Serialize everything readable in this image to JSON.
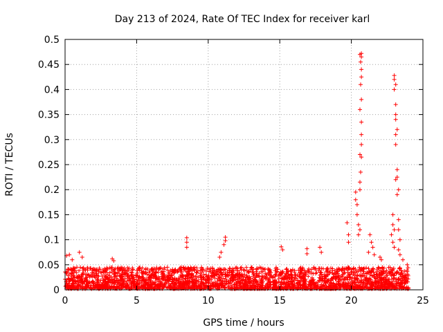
{
  "chart_data": {
    "type": "scatter",
    "title": "Day 213 of 2024, Rate Of TEC Index for receiver karl",
    "xlabel": "GPS time / hours",
    "ylabel": "ROTI / TECUs",
    "xlim": [
      0,
      25
    ],
    "ylim": [
      0,
      0.5
    ],
    "grid": true,
    "marker": "plus",
    "marker_color": "#ff0000",
    "x_ticks": [
      "0",
      "5",
      "10",
      "15",
      "20",
      "25"
    ],
    "y_ticks": [
      "0",
      "0.05",
      "0.1",
      "0.15",
      "0.2",
      "0.25",
      "0.3",
      "0.35",
      "0.4",
      "0.45",
      "0.5"
    ],
    "series": [
      {
        "name": "ROTI",
        "description_note": "dense band of points between 0 and ~0.05 TECU/min across 0-24 h, with spikes listed below",
        "baseline_band": {
          "x_range": [
            0,
            24
          ],
          "y_min": 0.002,
          "y_max": 0.045
        },
        "points": [
          [
            0.1,
            0.068
          ],
          [
            0.3,
            0.07
          ],
          [
            0.5,
            0.06
          ],
          [
            1.0,
            0.075
          ],
          [
            1.2,
            0.065
          ],
          [
            3.3,
            0.062
          ],
          [
            3.4,
            0.058
          ],
          [
            8.5,
            0.104
          ],
          [
            8.5,
            0.095
          ],
          [
            8.5,
            0.085
          ],
          [
            11.2,
            0.105
          ],
          [
            11.2,
            0.098
          ],
          [
            11.1,
            0.09
          ],
          [
            10.9,
            0.075
          ],
          [
            10.8,
            0.065
          ],
          [
            15.1,
            0.086
          ],
          [
            15.2,
            0.08
          ],
          [
            16.9,
            0.082
          ],
          [
            16.9,
            0.072
          ],
          [
            17.8,
            0.085
          ],
          [
            17.9,
            0.075
          ],
          [
            19.7,
            0.134
          ],
          [
            19.8,
            0.11
          ],
          [
            19.8,
            0.095
          ],
          [
            20.3,
            0.195
          ],
          [
            20.3,
            0.18
          ],
          [
            20.4,
            0.17
          ],
          [
            20.4,
            0.15
          ],
          [
            20.5,
            0.13
          ],
          [
            20.5,
            0.11
          ],
          [
            20.6,
            0.12
          ],
          [
            20.6,
            0.2
          ],
          [
            20.6,
            0.215
          ],
          [
            20.65,
            0.235
          ],
          [
            20.7,
            0.265
          ],
          [
            20.6,
            0.27
          ],
          [
            20.7,
            0.29
          ],
          [
            20.7,
            0.31
          ],
          [
            20.7,
            0.335
          ],
          [
            20.6,
            0.36
          ],
          [
            20.7,
            0.38
          ],
          [
            20.65,
            0.41
          ],
          [
            20.7,
            0.425
          ],
          [
            20.7,
            0.44
          ],
          [
            20.65,
            0.455
          ],
          [
            20.6,
            0.47
          ],
          [
            20.7,
            0.472
          ],
          [
            20.7,
            0.465
          ],
          [
            21.3,
            0.11
          ],
          [
            21.4,
            0.095
          ],
          [
            21.5,
            0.085
          ],
          [
            21.2,
            0.075
          ],
          [
            21.6,
            0.07
          ],
          [
            22.0,
            0.065
          ],
          [
            22.1,
            0.06
          ],
          [
            22.9,
            0.15
          ],
          [
            22.9,
            0.13
          ],
          [
            23.0,
            0.12
          ],
          [
            22.8,
            0.11
          ],
          [
            22.9,
            0.095
          ],
          [
            23.0,
            0.085
          ],
          [
            23.1,
            0.22
          ],
          [
            23.2,
            0.24
          ],
          [
            23.1,
            0.29
          ],
          [
            23.1,
            0.31
          ],
          [
            23.2,
            0.32
          ],
          [
            23.1,
            0.34
          ],
          [
            23.1,
            0.35
          ],
          [
            23.1,
            0.37
          ],
          [
            23.0,
            0.4
          ],
          [
            23.1,
            0.41
          ],
          [
            23.0,
            0.42
          ],
          [
            23.0,
            0.428
          ],
          [
            23.2,
            0.19
          ],
          [
            23.2,
            0.225
          ],
          [
            23.3,
            0.2
          ],
          [
            23.3,
            0.14
          ],
          [
            23.3,
            0.12
          ],
          [
            23.4,
            0.1
          ],
          [
            23.3,
            0.08
          ],
          [
            23.4,
            0.07
          ],
          [
            23.6,
            0.06
          ],
          [
            23.9,
            0.05
          ]
        ]
      }
    ]
  }
}
